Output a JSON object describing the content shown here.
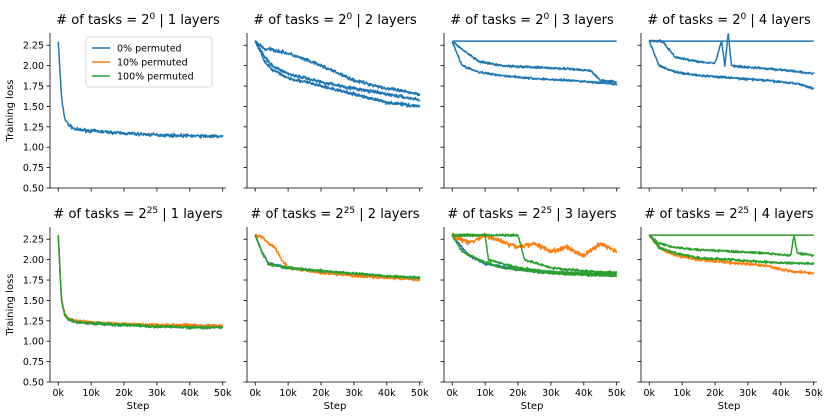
{
  "chart_data": {
    "type": "line",
    "shared_axes": {
      "ylabel": "Training loss",
      "xlabel": "Step",
      "ylim": [
        0.5,
        2.4
      ],
      "yticks": [
        0.5,
        0.75,
        1.0,
        1.25,
        1.5,
        1.75,
        2.0,
        2.25
      ],
      "yticklabels": [
        "0.50",
        "0.75",
        "1.00",
        "1.25",
        "1.50",
        "1.75",
        "2.00",
        "2.25"
      ],
      "xlim": [
        -2500,
        51000
      ],
      "xticks": [
        0,
        10000,
        20000,
        30000,
        40000,
        50000
      ],
      "xticklabels": [
        "0k",
        "10k",
        "20k",
        "30k",
        "40k",
        "50k"
      ],
      "grid": false
    },
    "legend": {
      "placement": "upper-right of first panel",
      "entries": [
        {
          "name": "0% permuted",
          "color": "#1f77b4"
        },
        {
          "name": "10% permuted",
          "color": "#ff7f0e"
        },
        {
          "name": "100% permuted",
          "color": "#2ca02c"
        }
      ]
    },
    "panels": [
      {
        "row": 0,
        "col": 0,
        "title_prefix": "# of tasks = 2",
        "title_exp": "0",
        "title_suffix": " | 1 layers",
        "series": [
          {
            "name": "0% permuted",
            "color": "#1f77b4",
            "x": [
              0,
              1000,
              2000,
              3000,
              5000,
              10000,
              20000,
              30000,
              40000,
              50000
            ],
            "y": [
              2.3,
              1.6,
              1.35,
              1.28,
              1.22,
              1.2,
              1.17,
              1.15,
              1.14,
              1.13
            ],
            "noise": 0.03
          }
        ]
      },
      {
        "row": 0,
        "col": 1,
        "title_prefix": "# of tasks = 2",
        "title_exp": "0",
        "title_suffix": " | 2 layers",
        "series": [
          {
            "name": "0% permuted",
            "color": "#1f77b4",
            "x": [
              0,
              3000,
              5000,
              10000,
              20000,
              30000,
              40000,
              50000
            ],
            "y": [
              2.3,
              2.2,
              2.2,
              2.15,
              2.0,
              1.82,
              1.72,
              1.65
            ],
            "noise": 0.03
          },
          {
            "name": "0% permuted",
            "color": "#1f77b4",
            "x": [
              0,
              3000,
              5000,
              10000,
              20000,
              30000,
              40000,
              50000
            ],
            "y": [
              2.3,
              2.1,
              2.0,
              1.9,
              1.8,
              1.72,
              1.65,
              1.58
            ],
            "noise": 0.03
          },
          {
            "name": "0% permuted",
            "color": "#1f77b4",
            "x": [
              0,
              3000,
              5000,
              10000,
              20000,
              30000,
              40000,
              50000
            ],
            "y": [
              2.3,
              2.05,
              1.95,
              1.85,
              1.75,
              1.65,
              1.55,
              1.5
            ],
            "noise": 0.03
          }
        ]
      },
      {
        "row": 0,
        "col": 2,
        "title_prefix": "# of tasks = 2",
        "title_exp": "0",
        "title_suffix": " | 3 layers",
        "series": [
          {
            "name": "0% permuted",
            "color": "#1f77b4",
            "x": [
              0,
              50000
            ],
            "y": [
              2.3,
              2.3
            ],
            "noise": 0
          },
          {
            "name": "0% permuted",
            "color": "#1f77b4",
            "x": [
              0,
              3000,
              8000,
              15000,
              25000,
              35000,
              42000,
              45000,
              50000
            ],
            "y": [
              2.3,
              2.2,
              2.05,
              2.0,
              1.98,
              1.96,
              1.94,
              1.82,
              1.8
            ],
            "noise": 0.02
          },
          {
            "name": "0% permuted",
            "color": "#1f77b4",
            "x": [
              0,
              3000,
              8000,
              15000,
              25000,
              35000,
              42000,
              50000
            ],
            "y": [
              2.3,
              2.0,
              1.92,
              1.88,
              1.84,
              1.82,
              1.8,
              1.77
            ],
            "noise": 0.02
          }
        ]
      },
      {
        "row": 0,
        "col": 3,
        "title_prefix": "# of tasks = 2",
        "title_exp": "0",
        "title_suffix": " | 4 layers",
        "series": [
          {
            "name": "0% permuted",
            "color": "#1f77b4",
            "x": [
              0,
              50000
            ],
            "y": [
              2.3,
              2.3
            ],
            "noise": 0
          },
          {
            "name": "0% permuted",
            "color": "#1f77b4",
            "x": [
              0,
              4000,
              8000,
              15000,
              20000,
              22000,
              23000,
              24000,
              25000,
              30000,
              40000,
              50000
            ],
            "y": [
              2.3,
              2.3,
              2.1,
              2.05,
              2.03,
              2.3,
              2.0,
              2.4,
              2.0,
              1.98,
              1.95,
              1.9
            ],
            "noise": 0.02
          },
          {
            "name": "0% permuted",
            "color": "#1f77b4",
            "x": [
              0,
              3000,
              8000,
              15000,
              25000,
              35000,
              45000,
              50000
            ],
            "y": [
              2.3,
              2.0,
              1.92,
              1.88,
              1.85,
              1.82,
              1.78,
              1.72
            ],
            "noise": 0.02
          }
        ]
      },
      {
        "row": 1,
        "col": 0,
        "title_prefix": "# of tasks = 2",
        "title_exp": "25",
        "title_suffix": " | 1 layers",
        "series": [
          {
            "name": "0% permuted",
            "color": "#1f77b4",
            "x": [
              0,
              1000,
              2000,
              3000,
              5000,
              10000,
              20000,
              30000,
              40000,
              50000
            ],
            "y": [
              2.3,
              1.5,
              1.32,
              1.27,
              1.24,
              1.22,
              1.2,
              1.19,
              1.18,
              1.18
            ],
            "noise": 0.025
          },
          {
            "name": "10% permuted",
            "color": "#ff7f0e",
            "x": [
              0,
              1000,
              2000,
              3000,
              5000,
              10000,
              20000,
              30000,
              40000,
              50000
            ],
            "y": [
              2.3,
              1.52,
              1.33,
              1.28,
              1.25,
              1.23,
              1.21,
              1.2,
              1.2,
              1.19
            ],
            "noise": 0.025
          },
          {
            "name": "100% permuted",
            "color": "#2ca02c",
            "x": [
              0,
              1000,
              2000,
              3000,
              5000,
              10000,
              20000,
              30000,
              40000,
              50000
            ],
            "y": [
              2.3,
              1.5,
              1.32,
              1.27,
              1.24,
              1.22,
              1.2,
              1.18,
              1.17,
              1.17
            ],
            "noise": 0.025
          }
        ]
      },
      {
        "row": 1,
        "col": 1,
        "title_prefix": "# of tasks = 2",
        "title_exp": "25",
        "title_suffix": " | 2 layers",
        "series": [
          {
            "name": "0% permuted",
            "color": "#1f77b4",
            "x": [
              0,
              2000,
              4000,
              10000,
              20000,
              30000,
              40000,
              50000
            ],
            "y": [
              2.3,
              2.1,
              1.95,
              1.9,
              1.85,
              1.82,
              1.79,
              1.77
            ],
            "noise": 0.025
          },
          {
            "name": "10% permuted",
            "color": "#ff7f0e",
            "x": [
              0,
              2000,
              4000,
              6000,
              8000,
              10000,
              20000,
              30000,
              40000,
              50000
            ],
            "y": [
              2.3,
              2.28,
              2.2,
              2.15,
              2.0,
              1.9,
              1.84,
              1.8,
              1.78,
              1.75
            ],
            "noise": 0.025
          },
          {
            "name": "100% permuted",
            "color": "#2ca02c",
            "x": [
              0,
              2000,
              4000,
              10000,
              20000,
              30000,
              40000,
              50000
            ],
            "y": [
              2.3,
              2.1,
              1.95,
              1.9,
              1.86,
              1.83,
              1.8,
              1.78
            ],
            "noise": 0.025
          }
        ]
      },
      {
        "row": 1,
        "col": 2,
        "title_prefix": "# of tasks = 2",
        "title_exp": "25",
        "title_suffix": " | 3 layers",
        "series": [
          {
            "name": "0% permuted",
            "color": "#1f77b4",
            "x": [
              0,
              5000,
              10000,
              20000,
              30000,
              40000,
              50000
            ],
            "y": [
              2.3,
              2.05,
              1.95,
              1.88,
              1.85,
              1.83,
              1.82
            ],
            "noise": 0.02
          },
          {
            "name": "10% permuted",
            "color": "#ff7f0e",
            "x": [
              0,
              5000,
              10000,
              20000,
              25000,
              30000,
              35000,
              40000,
              45000,
              50000
            ],
            "y": [
              2.3,
              2.2,
              2.3,
              2.15,
              2.2,
              2.1,
              2.15,
              2.05,
              2.2,
              2.1
            ],
            "noise": 0.04
          },
          {
            "name": "100% permuted",
            "color": "#2ca02c",
            "x": [
              0,
              10000,
              11000,
              20000,
              30000,
              40000,
              50000
            ],
            "y": [
              2.3,
              2.3,
              2.0,
              1.9,
              1.85,
              1.83,
              1.82
            ],
            "noise": 0.02
          },
          {
            "name": "100% permuted",
            "color": "#2ca02c",
            "x": [
              0,
              20000,
              22000,
              30000,
              40000,
              50000
            ],
            "y": [
              2.3,
              2.3,
              2.0,
              1.9,
              1.86,
              1.84
            ],
            "noise": 0.02
          },
          {
            "name": "100% permuted",
            "color": "#2ca02c",
            "x": [
              0,
              3000,
              8000,
              15000,
              25000,
              35000,
              50000
            ],
            "y": [
              2.3,
              2.1,
              2.0,
              1.9,
              1.85,
              1.82,
              1.8
            ],
            "noise": 0.02
          }
        ]
      },
      {
        "row": 1,
        "col": 3,
        "title_prefix": "# of tasks = 2",
        "title_exp": "25",
        "title_suffix": " | 4 layers",
        "series": [
          {
            "name": "100% permuted",
            "color": "#2ca02c",
            "x": [
              0,
              50000
            ],
            "y": [
              2.3,
              2.3
            ],
            "noise": 0
          },
          {
            "name": "10% permuted",
            "color": "#ff7f0e",
            "x": [
              0,
              3000,
              8000,
              15000,
              25000,
              35000,
              40000,
              45000,
              50000
            ],
            "y": [
              2.3,
              2.15,
              2.05,
              2.0,
              1.96,
              1.93,
              1.88,
              1.85,
              1.83
            ],
            "noise": 0.025
          },
          {
            "name": "100% permuted",
            "color": "#2ca02c",
            "x": [
              0,
              3000,
              8000,
              15000,
              25000,
              35000,
              50000
            ],
            "y": [
              2.3,
              2.15,
              2.08,
              2.02,
              2.0,
              1.97,
              1.95
            ],
            "noise": 0.02
          },
          {
            "name": "100% permuted",
            "color": "#2ca02c",
            "x": [
              0,
              3000,
              8000,
              15000,
              25000,
              35000,
              43000,
              44000,
              45000,
              50000
            ],
            "y": [
              2.3,
              2.2,
              2.15,
              2.12,
              2.1,
              2.08,
              2.05,
              2.3,
              2.08,
              2.05
            ],
            "noise": 0.02
          }
        ]
      }
    ]
  }
}
